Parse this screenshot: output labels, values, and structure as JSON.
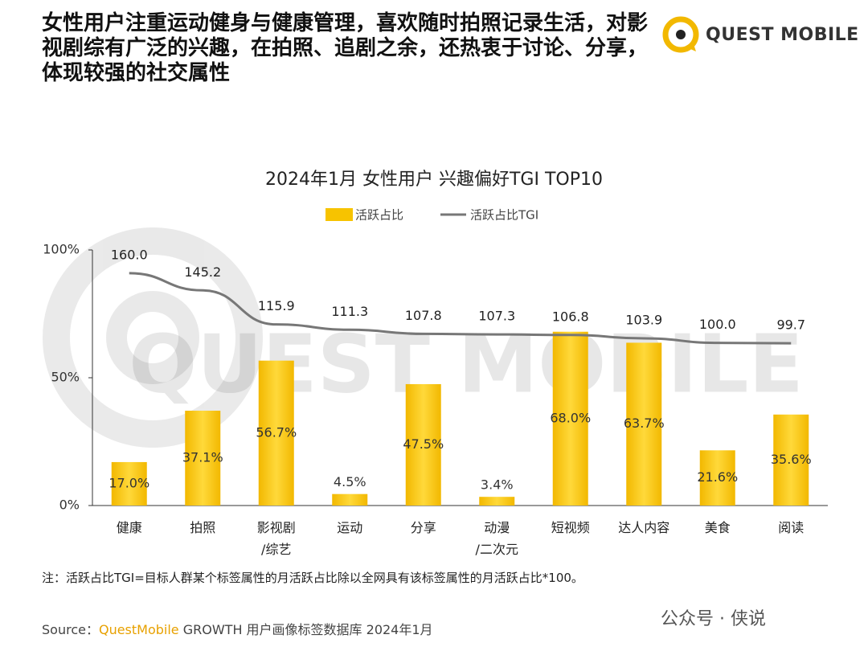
{
  "heading": "女性用户注重运动健身与健康管理，喜欢随时拍照记录生活，对影视剧综有广泛的兴趣，在拍照、追剧之余，还热衷于讨论、分享，体现较强的社交属性",
  "logo": "QUEST MOBILE",
  "chart_data": {
    "type": "bar",
    "title": "2024年1月 女性用户 兴趣偏好TGI TOP10",
    "watermark": "QUEST MOBILE",
    "categories": [
      "健康",
      "拍照",
      "影视剧\n/综艺",
      "运动",
      "分享",
      "动漫\n/二次元",
      "短视频",
      "达人内容",
      "美食",
      "阅读"
    ],
    "series": [
      {
        "name": "活跃占比",
        "color": "#f7c300",
        "type": "bar",
        "values": [
          17.0,
          37.1,
          56.7,
          4.5,
          47.5,
          3.4,
          68.0,
          63.7,
          21.6,
          35.6
        ],
        "value_labels": [
          "17.0%",
          "37.1%",
          "56.7%",
          "4.5%",
          "47.5%",
          "3.4%",
          "68.0%",
          "63.7%",
          "21.6%",
          "35.6%"
        ]
      },
      {
        "name": "活跃占比TGI",
        "color": "#777777",
        "type": "line",
        "axis": "y2",
        "values": [
          160.0,
          145.2,
          115.9,
          111.3,
          107.8,
          107.3,
          106.8,
          103.9,
          100.0,
          99.7
        ],
        "value_labels": [
          "160.0",
          "145.2",
          "115.9",
          "111.3",
          "107.8",
          "107.3",
          "106.8",
          "103.9",
          "100.0",
          "99.7"
        ]
      }
    ],
    "ylim": [
      0,
      100
    ],
    "yticks": [
      {
        "value": 0,
        "label": "0%"
      },
      {
        "value": 50,
        "label": "50%"
      },
      {
        "value": 100,
        "label": "100%"
      }
    ],
    "y2lim": [
      -40,
      180
    ],
    "legend": "top"
  },
  "note": "注：活跃占比TGI=目标人群某个标签属性的月活跃占比除以全网具有该标签属性的月活跃占比*100。",
  "source": {
    "label": "Source：",
    "brand": "QuestMobile",
    "text": "GROWTH 用户画像标签数据库 2024年1月"
  },
  "wechat": "公众号 · 侠说"
}
